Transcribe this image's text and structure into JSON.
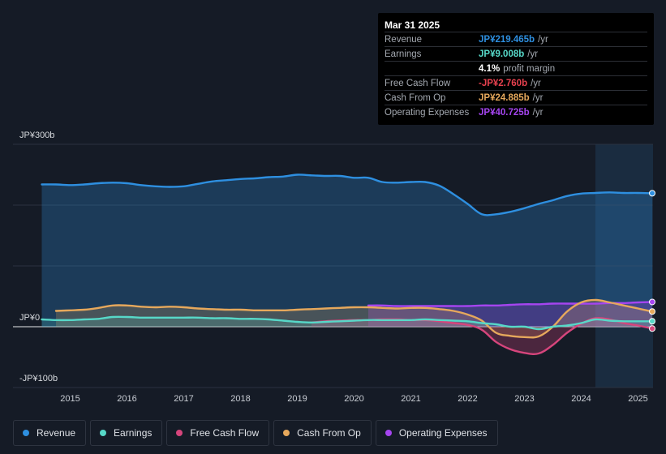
{
  "colors": {
    "revenue": "#2e8fe0",
    "earnings": "#57d8c8",
    "fcf": "#d6457c",
    "cfo": "#e6a85c",
    "opex": "#a545f0",
    "grid": "#2b3240",
    "text": "#c9cdd4"
  },
  "tooltip": {
    "date": "Mar 31 2025",
    "rows": [
      {
        "label": "Revenue",
        "value": "JP¥219.465b",
        "unit": "/yr",
        "color": "#2e8fe0"
      },
      {
        "label": "Earnings",
        "value": "JP¥9.008b",
        "unit": "/yr",
        "color": "#57d8c8"
      },
      {
        "label": "",
        "value": "4.1%",
        "unit": "profit margin",
        "color": "#ffffff"
      },
      {
        "label": "Free Cash Flow",
        "value": "-JP¥2.760b",
        "unit": "/yr",
        "color": "#e8414f"
      },
      {
        "label": "Cash From Op",
        "value": "JP¥24.885b",
        "unit": "/yr",
        "color": "#e6a85c"
      },
      {
        "label": "Operating Expenses",
        "value": "JP¥40.725b",
        "unit": "/yr",
        "color": "#a545f0"
      }
    ]
  },
  "legend": [
    {
      "label": "Revenue",
      "color": "#2e8fe0"
    },
    {
      "label": "Earnings",
      "color": "#57d8c8"
    },
    {
      "label": "Free Cash Flow",
      "color": "#d6457c"
    },
    {
      "label": "Cash From Op",
      "color": "#e6a85c"
    },
    {
      "label": "Operating Expenses",
      "color": "#a545f0"
    }
  ],
  "chart_data": {
    "type": "area",
    "title": "",
    "xlabel": "",
    "ylabel": "",
    "xlim": [
      2014.45,
      2025.25
    ],
    "ylim": [
      -100,
      300
    ],
    "highlight_from": 2024.25,
    "y_tick_labels": [
      {
        "value": 300,
        "label": "JP¥300b"
      },
      {
        "value": 0,
        "label": "JP¥0"
      },
      {
        "value": -100,
        "label": "-JP¥100b"
      }
    ],
    "x_tick_labels": [
      {
        "value": 2015,
        "label": "2015"
      },
      {
        "value": 2016,
        "label": "2016"
      },
      {
        "value": 2017,
        "label": "2017"
      },
      {
        "value": 2018,
        "label": "2018"
      },
      {
        "value": 2019,
        "label": "2019"
      },
      {
        "value": 2020,
        "label": "2020"
      },
      {
        "value": 2021,
        "label": "2021"
      },
      {
        "value": 2022,
        "label": "2022"
      },
      {
        "value": 2023,
        "label": "2023"
      },
      {
        "value": 2024,
        "label": "2024"
      },
      {
        "value": 2025,
        "label": "2025"
      }
    ],
    "series": [
      {
        "key": "revenue",
        "name": "Revenue",
        "x": [
          2014.5,
          2014.75,
          2015.0,
          2015.25,
          2015.5,
          2015.75,
          2016.0,
          2016.25,
          2016.5,
          2016.75,
          2017.0,
          2017.25,
          2017.5,
          2017.75,
          2018.0,
          2018.25,
          2018.5,
          2018.75,
          2019.0,
          2019.25,
          2019.5,
          2019.75,
          2020.0,
          2020.25,
          2020.5,
          2020.75,
          2021.0,
          2021.25,
          2021.5,
          2021.75,
          2022.0,
          2022.25,
          2022.5,
          2022.75,
          2023.0,
          2023.25,
          2023.5,
          2023.75,
          2024.0,
          2024.25,
          2024.5,
          2024.75,
          2025.0,
          2025.25
        ],
        "values": [
          234,
          234,
          233,
          234,
          236,
          237,
          236,
          233,
          231,
          230,
          231,
          235,
          239,
          241,
          243,
          244,
          246,
          247,
          250,
          249,
          248,
          248,
          245,
          245,
          238,
          237,
          238,
          238,
          232,
          218,
          202,
          185,
          185,
          189,
          195,
          202,
          208,
          215,
          219,
          220,
          221,
          220,
          220,
          219.5
        ]
      },
      {
        "key": "earnings",
        "name": "Earnings",
        "x": [
          2014.5,
          2014.75,
          2015.0,
          2015.25,
          2015.5,
          2015.75,
          2016.0,
          2016.25,
          2016.5,
          2016.75,
          2017.0,
          2017.25,
          2017.5,
          2017.75,
          2018.0,
          2018.25,
          2018.5,
          2018.75,
          2019.0,
          2019.25,
          2019.5,
          2019.75,
          2020.0,
          2020.25,
          2020.5,
          2020.75,
          2021.0,
          2021.25,
          2021.5,
          2021.75,
          2022.0,
          2022.25,
          2022.5,
          2022.75,
          2023.0,
          2023.25,
          2023.5,
          2023.75,
          2024.0,
          2024.25,
          2024.5,
          2024.75,
          2025.0,
          2025.25
        ],
        "values": [
          12,
          11,
          11,
          12,
          13,
          16,
          16,
          15,
          15,
          15,
          15,
          15,
          14,
          14,
          13,
          13,
          12,
          10,
          8,
          7,
          8,
          9,
          10,
          11,
          11,
          11,
          11,
          12,
          11,
          10,
          9,
          6,
          4,
          0,
          0,
          -4,
          0,
          2,
          6,
          12,
          10,
          9,
          9,
          9
        ]
      },
      {
        "key": "fcf",
        "name": "Free Cash Flow",
        "x": [
          2019.25,
          2019.5,
          2019.75,
          2020.0,
          2020.25,
          2020.5,
          2020.75,
          2021.0,
          2021.25,
          2021.5,
          2021.75,
          2022.0,
          2022.25,
          2022.5,
          2022.75,
          2023.0,
          2023.25,
          2023.5,
          2023.75,
          2024.0,
          2024.25,
          2024.5,
          2024.75,
          2025.0,
          2025.25
        ],
        "values": [
          7,
          9,
          10,
          11,
          11,
          12,
          12,
          11,
          11,
          9,
          6,
          3,
          -5,
          -25,
          -37,
          -43,
          -44,
          -30,
          -10,
          5,
          14,
          12,
          6,
          2,
          -3
        ]
      },
      {
        "key": "cfo",
        "name": "Cash From Op",
        "x": [
          2014.75,
          2015.0,
          2015.25,
          2015.5,
          2015.75,
          2016.0,
          2016.25,
          2016.5,
          2016.75,
          2017.0,
          2017.25,
          2017.5,
          2017.75,
          2018.0,
          2018.25,
          2018.5,
          2018.75,
          2019.0,
          2019.25,
          2019.5,
          2019.75,
          2020.0,
          2020.25,
          2020.5,
          2020.75,
          2021.0,
          2021.25,
          2021.5,
          2021.75,
          2022.0,
          2022.25,
          2022.5,
          2022.75,
          2023.0,
          2023.25,
          2023.5,
          2023.75,
          2024.0,
          2024.25,
          2024.5,
          2024.75,
          2025.0,
          2025.25
        ],
        "values": [
          26,
          27,
          28,
          31,
          35,
          35,
          33,
          32,
          33,
          32,
          30,
          29,
          28,
          28,
          27,
          27,
          27,
          28,
          29,
          30,
          31,
          32,
          32,
          31,
          30,
          31,
          31,
          29,
          26,
          20,
          10,
          -10,
          -15,
          -17,
          -16,
          0,
          25,
          40,
          44,
          40,
          35,
          30,
          25
        ]
      },
      {
        "key": "opex",
        "name": "Operating Expenses",
        "x": [
          2020.25,
          2020.5,
          2020.75,
          2021.0,
          2021.25,
          2021.5,
          2021.75,
          2022.0,
          2022.25,
          2022.5,
          2022.75,
          2023.0,
          2023.25,
          2023.5,
          2023.75,
          2024.0,
          2024.25,
          2024.5,
          2024.75,
          2025.0,
          2025.25
        ],
        "values": [
          35,
          35,
          34,
          34,
          34,
          34,
          34,
          34,
          35,
          35,
          36,
          37,
          37,
          38,
          38,
          38,
          38,
          39,
          39,
          40,
          40.7
        ]
      }
    ]
  }
}
